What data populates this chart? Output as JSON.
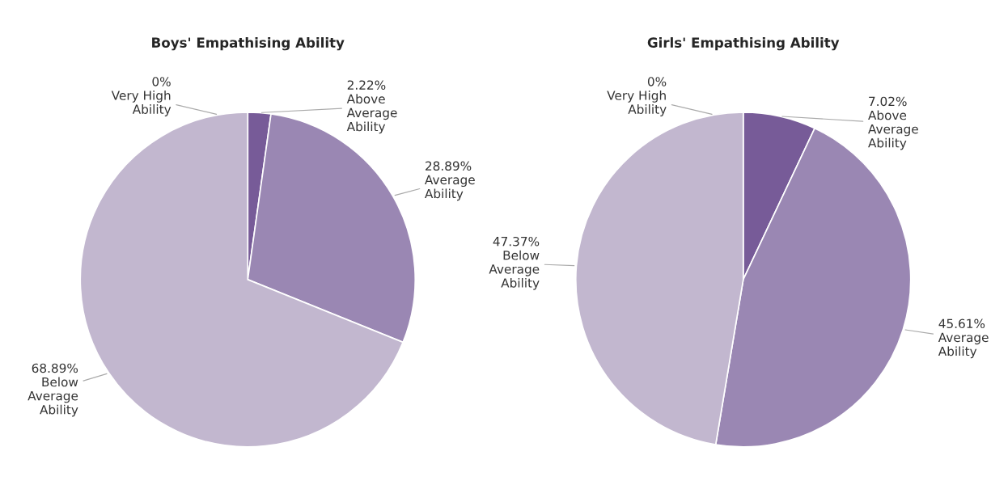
{
  "chart_data": [
    {
      "type": "pie",
      "title": "Boys' Empathising Ability",
      "categories": [
        "Very High\nAbility",
        "Above\nAverage\nAbility",
        "Average\nAbility",
        "Below\nAverage\nAbility"
      ],
      "values": [
        0,
        2.22,
        28.89,
        68.89
      ],
      "value_labels": [
        "0%",
        "2.22%",
        "28.89%",
        "68.89%"
      ],
      "colors": [
        "#5a3d7f",
        "#775b98",
        "#9a87b3",
        "#c2b7cf"
      ]
    },
    {
      "type": "pie",
      "title": "Girls' Empathising Ability",
      "categories": [
        "Very High\nAbility",
        "Above\nAverage\nAbility",
        "Average\nAbility",
        "Below\nAverage\nAbility"
      ],
      "values": [
        0,
        7.02,
        45.61,
        47.37
      ],
      "value_labels": [
        "0%",
        "7.02%",
        "45.61%",
        "47.37%"
      ],
      "colors": [
        "#5a3d7f",
        "#775b98",
        "#9a87b3",
        "#c2b7cf"
      ]
    }
  ]
}
